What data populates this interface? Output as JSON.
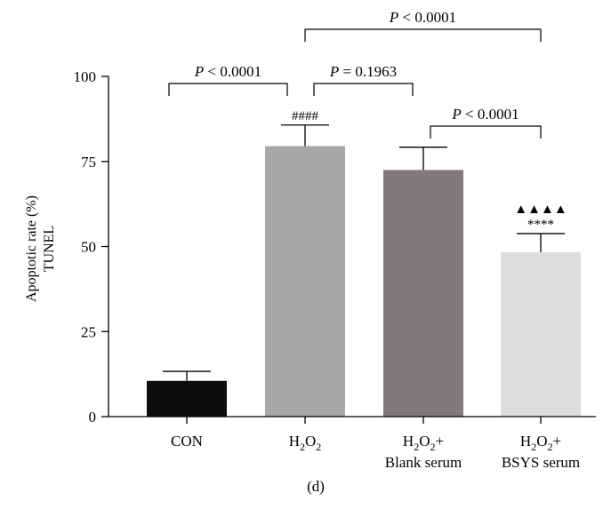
{
  "chart_data": {
    "type": "bar",
    "categories": [
      {
        "line1": "CON",
        "line2": ""
      },
      {
        "line1": "H2O2",
        "line2": ""
      },
      {
        "line1": "H2O2+",
        "line2": "Blank serum"
      },
      {
        "line1": "H2O2+",
        "line2": "BSYS serum"
      }
    ],
    "values": [
      10.5,
      79.5,
      72.5,
      48.3
    ],
    "errors": [
      2.8,
      6.2,
      6.7,
      5.5
    ],
    "colors": [
      "#0d0d0d",
      "#a7a6a8",
      "#7f7b7b",
      "#dcdcdc"
    ],
    "ylabel_line1": "Apoptotic rate (%)",
    "ylabel_line2": "TUNEL",
    "ylim": [
      0,
      100
    ],
    "yticks": [
      "0",
      "25",
      "50",
      "75",
      "100"
    ],
    "bar_annotations": [
      {
        "bar": 1,
        "lines": [
          "####"
        ]
      },
      {
        "bar": 3,
        "lines": [
          "▲▲▲▲",
          "****"
        ]
      }
    ],
    "comparisons": [
      {
        "from": 0,
        "to": 1,
        "p_symbol": "P",
        "p_text": " < 0.0001"
      },
      {
        "from": 1,
        "to": 2,
        "p_symbol": "P",
        "p_text": " = 0.1963"
      },
      {
        "from": 2,
        "to": 3,
        "p_symbol": "P",
        "p_text": " < 0.0001"
      },
      {
        "from": 1,
        "to": 3,
        "p_symbol": "P",
        "p_text": " < 0.0001"
      }
    ],
    "panel_label": "(d)"
  }
}
